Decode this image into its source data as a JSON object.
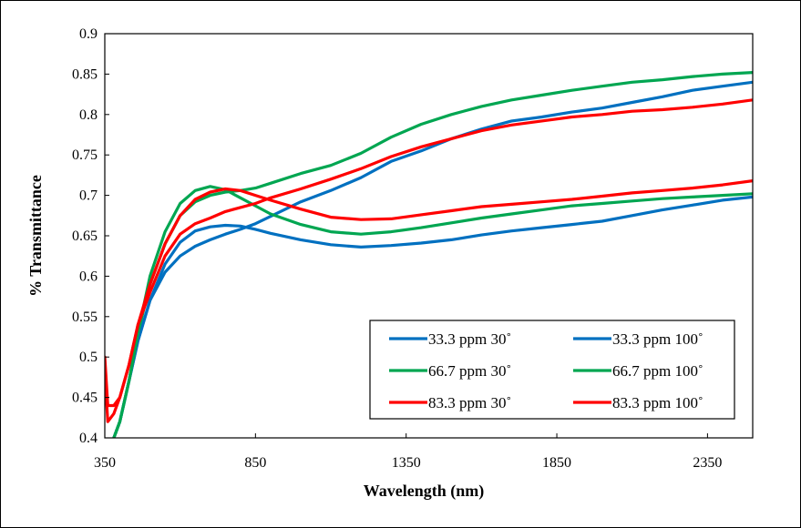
{
  "chart_data": {
    "type": "line",
    "title": "",
    "xlabel": "Wavelength (nm)",
    "ylabel": "% Transmittance",
    "xlim": [
      350,
      2500
    ],
    "ylim": [
      0.4,
      0.9
    ],
    "xticks": [
      350,
      850,
      1350,
      1850,
      2350
    ],
    "xtick_labels": [
      "350",
      "850",
      "1350",
      "1850",
      "2350"
    ],
    "yticks": [
      0.4,
      0.45,
      0.5,
      0.55,
      0.6,
      0.65,
      0.7,
      0.75,
      0.8,
      0.85,
      0.9
    ],
    "ytick_labels": [
      "0.4",
      "0.45",
      "0.5",
      "0.55",
      "0.6",
      "0.65",
      "0.7",
      "0.75",
      "0.8",
      "0.85",
      "0.9"
    ],
    "grid": false,
    "legend_position": "bottom-right",
    "series": [
      {
        "name": "33.3 ppm 30˚",
        "color": "#0070C0",
        "x": [
          380,
          400,
          430,
          460,
          500,
          550,
          600,
          650,
          700,
          750,
          800,
          850,
          900,
          950,
          1000,
          1100,
          1200,
          1300,
          1400,
          1500,
          1600,
          1700,
          1800,
          1900,
          2000,
          2100,
          2200,
          2300,
          2400,
          2500
        ],
        "y": [
          0.4,
          0.42,
          0.47,
          0.52,
          0.57,
          0.605,
          0.625,
          0.637,
          0.645,
          0.652,
          0.658,
          0.665,
          0.674,
          0.683,
          0.692,
          0.706,
          0.722,
          0.742,
          0.755,
          0.77,
          0.782,
          0.792,
          0.797,
          0.803,
          0.808,
          0.815,
          0.822,
          0.83,
          0.835,
          0.84
        ]
      },
      {
        "name": "33.3 ppm 100˚",
        "color": "#0070C0",
        "x": [
          380,
          400,
          430,
          460,
          500,
          550,
          600,
          650,
          700,
          750,
          800,
          850,
          900,
          1000,
          1100,
          1200,
          1300,
          1400,
          1500,
          1600,
          1700,
          1800,
          1900,
          2000,
          2100,
          2200,
          2300,
          2400,
          2500
        ],
        "y": [
          0.4,
          0.42,
          0.47,
          0.52,
          0.57,
          0.615,
          0.642,
          0.656,
          0.661,
          0.663,
          0.662,
          0.658,
          0.653,
          0.645,
          0.639,
          0.636,
          0.638,
          0.641,
          0.645,
          0.651,
          0.656,
          0.66,
          0.664,
          0.668,
          0.675,
          0.682,
          0.688,
          0.694,
          0.698
        ]
      },
      {
        "name": "66.7 ppm 30˚",
        "color": "#00A651",
        "x": [
          380,
          400,
          430,
          460,
          500,
          550,
          600,
          650,
          700,
          750,
          800,
          850,
          900,
          1000,
          1100,
          1200,
          1300,
          1400,
          1500,
          1600,
          1700,
          1800,
          1900,
          2000,
          2100,
          2200,
          2300,
          2400,
          2500
        ],
        "y": [
          0.4,
          0.42,
          0.47,
          0.53,
          0.59,
          0.64,
          0.675,
          0.692,
          0.7,
          0.704,
          0.706,
          0.709,
          0.715,
          0.727,
          0.737,
          0.752,
          0.772,
          0.788,
          0.8,
          0.81,
          0.818,
          0.824,
          0.83,
          0.835,
          0.84,
          0.843,
          0.847,
          0.85,
          0.852
        ]
      },
      {
        "name": "66.7 ppm 100˚",
        "color": "#00A651",
        "x": [
          380,
          400,
          430,
          460,
          500,
          550,
          600,
          650,
          700,
          750,
          800,
          850,
          900,
          1000,
          1100,
          1200,
          1300,
          1400,
          1500,
          1600,
          1700,
          1800,
          1900,
          2000,
          2100,
          2200,
          2300,
          2400,
          2500
        ],
        "y": [
          0.4,
          0.42,
          0.47,
          0.53,
          0.6,
          0.655,
          0.69,
          0.706,
          0.711,
          0.707,
          0.697,
          0.687,
          0.677,
          0.664,
          0.655,
          0.652,
          0.655,
          0.66,
          0.666,
          0.672,
          0.677,
          0.682,
          0.687,
          0.69,
          0.693,
          0.696,
          0.698,
          0.7,
          0.702
        ]
      },
      {
        "name": "83.3 ppm 30˚",
        "color": "#FF0000",
        "x": [
          350,
          360,
          380,
          400,
          430,
          460,
          500,
          550,
          600,
          650,
          700,
          750,
          800,
          850,
          900,
          1000,
          1100,
          1200,
          1300,
          1400,
          1500,
          1600,
          1700,
          1800,
          1900,
          2000,
          2100,
          2200,
          2300,
          2400,
          2500
        ],
        "y": [
          0.5,
          0.44,
          0.44,
          0.45,
          0.49,
          0.54,
          0.58,
          0.625,
          0.652,
          0.665,
          0.672,
          0.68,
          0.685,
          0.69,
          0.697,
          0.708,
          0.72,
          0.733,
          0.748,
          0.76,
          0.77,
          0.78,
          0.787,
          0.792,
          0.797,
          0.8,
          0.804,
          0.806,
          0.809,
          0.813,
          0.818
        ]
      },
      {
        "name": "83.3 ppm 100˚",
        "color": "#FF0000",
        "x": [
          350,
          360,
          380,
          400,
          430,
          460,
          500,
          550,
          600,
          650,
          700,
          750,
          800,
          850,
          900,
          1000,
          1100,
          1200,
          1300,
          1400,
          1500,
          1600,
          1700,
          1800,
          1900,
          2000,
          2100,
          2200,
          2300,
          2400,
          2500
        ],
        "y": [
          0.48,
          0.42,
          0.43,
          0.45,
          0.49,
          0.54,
          0.59,
          0.64,
          0.675,
          0.695,
          0.704,
          0.708,
          0.706,
          0.7,
          0.694,
          0.683,
          0.673,
          0.67,
          0.671,
          0.676,
          0.681,
          0.686,
          0.689,
          0.692,
          0.695,
          0.699,
          0.703,
          0.706,
          0.709,
          0.713,
          0.718
        ]
      }
    ]
  }
}
